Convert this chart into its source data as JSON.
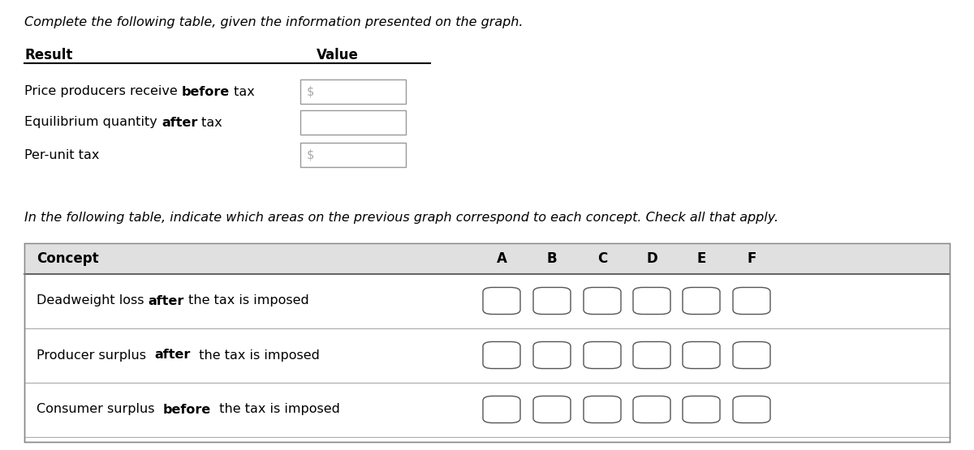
{
  "bg_color": "#ffffff",
  "intro_text": "Complete the following table, given the information presented on the graph.",
  "table1_header": [
    "Result",
    "Value"
  ],
  "table1_rows": [
    {
      "parts": [
        [
          "Price producers receive ",
          false
        ],
        [
          "before",
          true
        ],
        [
          " tax",
          false
        ]
      ],
      "has_dollar": true
    },
    {
      "parts": [
        [
          "Equilibrium quantity ",
          false
        ],
        [
          "after",
          true
        ],
        [
          " tax",
          false
        ]
      ],
      "has_dollar": false
    },
    {
      "parts": [
        [
          "Per-unit tax",
          false
        ]
      ],
      "has_dollar": true
    }
  ],
  "middle_text": "In the following table, indicate which areas on the previous graph correspond to each concept. Check all that apply.",
  "table2_col_headers": [
    "Concept",
    "A",
    "B",
    "C",
    "D",
    "E",
    "F"
  ],
  "table2_rows": [
    [
      [
        "Deadweight loss ",
        false
      ],
      [
        "after",
        true
      ],
      [
        " the tax is imposed",
        false
      ]
    ],
    [
      [
        "Producer surplus  ",
        false
      ],
      [
        "after",
        true
      ],
      [
        "  the tax is imposed",
        false
      ]
    ],
    [
      [
        "Consumer surplus  ",
        false
      ],
      [
        "before",
        true
      ],
      [
        "  the tax is imposed",
        false
      ]
    ]
  ]
}
